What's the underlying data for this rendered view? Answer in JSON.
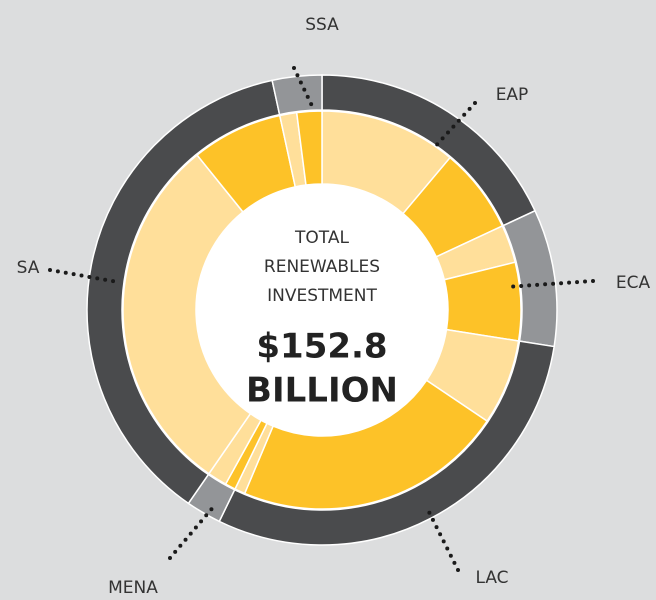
{
  "chart_data": {
    "type": "sunburst",
    "categories": [
      "EAP",
      "ECA",
      "LAC",
      "MENA",
      "SA",
      "SSA"
    ],
    "values": [
      27.6,
      14.4,
      45.4,
      3.7,
      56.5,
      5.2
    ],
    "colors": [
      "#4a4b4d",
      "#939598",
      "#4a4b4d",
      "#939598",
      "#4a4b4d",
      "#939598"
    ],
    "segments": [
      [
        17.0,
        10.6
      ],
      [
        4.7,
        9.7
      ],
      [
        10.6,
        33.5,
        1.3
      ],
      [
        1.3,
        2.4
      ],
      [
        45.2,
        11.3
      ],
      [
        2.1,
        3.1
      ]
    ],
    "segment_colors": [
      [
        "#ffdf9a",
        "#fdc228"
      ],
      [
        "#ffdf9a",
        "#fdc228"
      ],
      [
        "#ffdf9a",
        "#fdc228",
        "#ffdf9a"
      ],
      [
        "#fdc228",
        "#ffdf9a"
      ],
      [
        "#ffdf9a",
        "#fdc228"
      ],
      [
        "#ffdf9a",
        "#fdc228"
      ]
    ],
    "center_label": [
      "TOTAL",
      "RENEWABLES",
      "INVESTMENT"
    ],
    "center_value": [
      "$152.8",
      "BILLION"
    ]
  }
}
